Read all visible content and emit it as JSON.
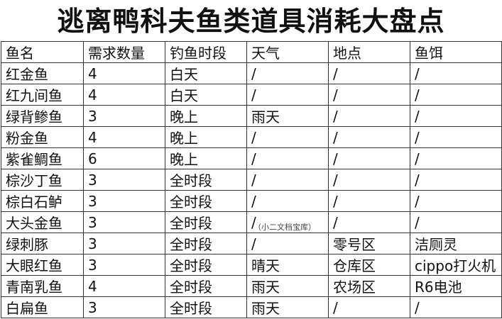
{
  "header": {
    "title": "逃离鸭科夫鱼类道具消耗大盘点"
  },
  "table": {
    "columns": [
      "鱼名",
      "需求数量",
      "钓鱼时段",
      "天气",
      "地点",
      "鱼饵"
    ],
    "rows": [
      [
        "红金鱼",
        4,
        "白天",
        "/",
        "/",
        "/"
      ],
      [
        "红九间鱼",
        4,
        "白天",
        "/",
        "/",
        "/"
      ],
      [
        "绿背鲹鱼",
        3,
        "晚上",
        "雨天",
        "/",
        "/"
      ],
      [
        "粉金鱼",
        4,
        "晚上",
        "/",
        "/",
        "/"
      ],
      [
        "紫雀鲷鱼",
        6,
        "晚上",
        "/",
        "/",
        "/"
      ],
      [
        "棕沙丁鱼",
        3,
        "全时段",
        "/",
        "/",
        "/"
      ],
      [
        "棕白石鲈",
        3,
        "全时段",
        "/",
        "/",
        "/"
      ],
      [
        "大头金鱼",
        3,
        "全时段",
        "/",
        "/",
        "/"
      ],
      [
        "绿刺豚",
        3,
        "全时段",
        "/",
        "零号区",
        "洁厕灵"
      ],
      [
        "大眼红鱼",
        3,
        "全时段",
        "晴天",
        "仓库区",
        "cippo打火机"
      ],
      [
        "青南乳鱼",
        4,
        "全时段",
        "雨天",
        "农场区",
        "R6电池"
      ],
      [
        "白扁鱼",
        3,
        "全时段",
        "雨天",
        "/",
        "/"
      ]
    ]
  },
  "watermark": "（小二文档宝库）"
}
